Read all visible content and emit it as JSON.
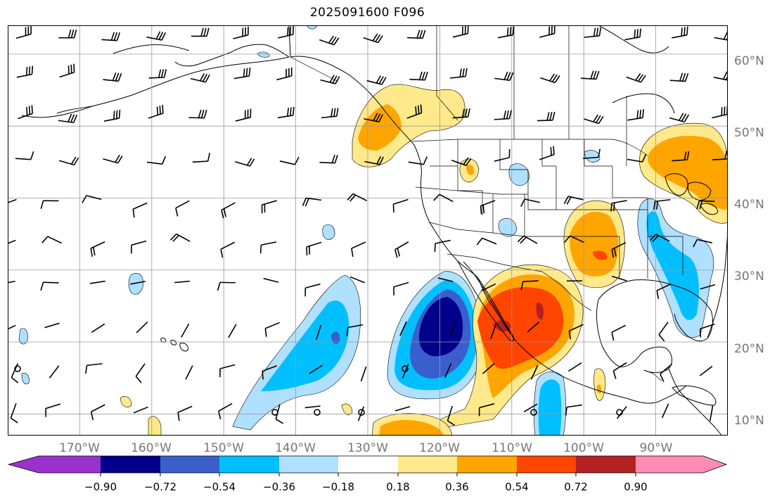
{
  "title": "2025091600 F096",
  "lat_labels": [
    "60°N",
    "50°N",
    "40°N",
    "30°N",
    "20°N",
    "10°N"
  ],
  "lon_labels": [
    "170°W",
    "160°W",
    "150°W",
    "140°W",
    "130°W",
    "120°W",
    "110°W",
    "100°W",
    "90°W"
  ],
  "colorbar": {
    "ticks": [
      "−0.90",
      "−0.72",
      "−0.54",
      "−0.36",
      "−0.18",
      "0.18",
      "0.36",
      "0.54",
      "0.72",
      "0.90"
    ],
    "colors": [
      "#9932cc",
      "#00008b",
      "#3a5fcd",
      "#00bfff",
      "#b0e0ff",
      "#ffffff",
      "#ffe98a",
      "#ffa500",
      "#ff4500",
      "#b22222",
      "#ff8cb4"
    ],
    "extend": "both"
  },
  "map": {
    "projection": "plate carree",
    "lon_range": [
      -180,
      -80
    ],
    "lat_range": [
      7,
      64
    ],
    "gridlines": true,
    "field": "anomaly (shaded, 0.18 interval)",
    "features": [
      "coastlines",
      "country borders",
      "US state borders",
      "wind barbs"
    ]
  }
}
